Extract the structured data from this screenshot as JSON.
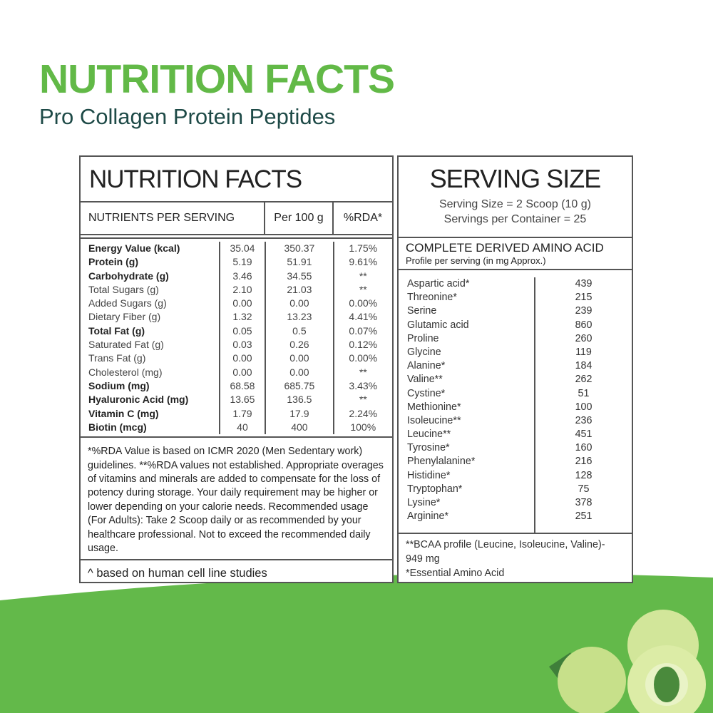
{
  "header": {
    "title": "NUTRITION FACTS",
    "subtitle": "Pro Collagen Protein Peptides"
  },
  "colors": {
    "title_green": "#62b947",
    "subtitle_teal": "#1e4a47",
    "wave_green": "#63b94a"
  },
  "nutrition": {
    "title": "NUTRITION FACTS",
    "columns": [
      "NUTRIENTS PER SERVING",
      "Per 100 g",
      "%RDA*"
    ],
    "rows": [
      {
        "name": "Energy Value (kcal)",
        "serving": "35.04",
        "per100": "350.37",
        "rda": "1.75%",
        "bold": true
      },
      {
        "name": "Protein (g)",
        "serving": "5.19",
        "per100": "51.91",
        "rda": "9.61%",
        "bold": true
      },
      {
        "name": "Carbohydrate (g)",
        "serving": "3.46",
        "per100": "34.55",
        "rda": "**",
        "bold": true
      },
      {
        "name": "Total Sugars (g)",
        "serving": "2.10",
        "per100": "21.03",
        "rda": "**",
        "bold": false
      },
      {
        "name": "Added Sugars (g)",
        "serving": "0.00",
        "per100": "0.00",
        "rda": "0.00%",
        "bold": false
      },
      {
        "name": "Dietary Fiber (g)",
        "serving": "1.32",
        "per100": "13.23",
        "rda": "4.41%",
        "bold": false
      },
      {
        "name": "Total Fat (g)",
        "serving": "0.05",
        "per100": "0.5",
        "rda": "0.07%",
        "bold": true
      },
      {
        "name": "Saturated Fat (g)",
        "serving": "0.03",
        "per100": "0.26",
        "rda": "0.12%",
        "bold": false
      },
      {
        "name": "Trans Fat (g)",
        "serving": "0.00",
        "per100": "0.00",
        "rda": "0.00%",
        "bold": false
      },
      {
        "name": "Cholesterol (mg)",
        "serving": "0.00",
        "per100": "0.00",
        "rda": "**",
        "bold": false
      },
      {
        "name": "Sodium (mg)",
        "serving": "68.58",
        "per100": "685.75",
        "rda": "3.43%",
        "bold": true
      },
      {
        "name": "Hyaluronic Acid (mg)",
        "serving": "13.65",
        "per100": "136.5",
        "rda": "**",
        "bold": true
      },
      {
        "name": "Vitamin C (mg)",
        "serving": "1.79",
        "per100": "17.9",
        "rda": "2.24%",
        "bold": true
      },
      {
        "name": "Biotin (mcg)",
        "serving": "40",
        "per100": "400",
        "rda": "100%",
        "bold": true
      }
    ],
    "footnote": "*%RDA Value is based on ICMR 2020 (Men Sedentary work) guidelines. **%RDA values not established. Appropriate overages of vitamins and minerals are added to compensate for the loss of potency during storage. Your daily requirement may be higher or lower depending on your calorie needs. Recommended usage (For Adults): Take 2 Scoop daily or as recommended by your healthcare professional. Not to exceed the recommended daily usage.",
    "footnote2": "^ based on human cell line studies"
  },
  "serving": {
    "title": "SERVING SIZE",
    "size": "Serving Size = 2 Scoop (10 g)",
    "per_container": "Servings per Container = 25"
  },
  "amino": {
    "title": "COMPLETE DERIVED AMINO ACID",
    "subtitle": "Profile per serving (in mg Approx.)",
    "rows": [
      {
        "name": "Aspartic acid*",
        "value": "439"
      },
      {
        "name": "Threonine*",
        "value": "215"
      },
      {
        "name": "Serine",
        "value": "239"
      },
      {
        "name": "Glutamic acid",
        "value": "860"
      },
      {
        "name": "Proline",
        "value": "260"
      },
      {
        "name": "Glycine",
        "value": "119"
      },
      {
        "name": "Alanine*",
        "value": "184"
      },
      {
        "name": "Valine**",
        "value": "262"
      },
      {
        "name": "Cystine*",
        "value": "51"
      },
      {
        "name": "Methionine*",
        "value": "100"
      },
      {
        "name": "Isoleucine**",
        "value": "236"
      },
      {
        "name": "Leucine**",
        "value": "451"
      },
      {
        "name": "Tyrosine*",
        "value": "160"
      },
      {
        "name": "Phenylalanine*",
        "value": "216"
      },
      {
        "name": "Histidine*",
        "value": "128"
      },
      {
        "name": "Tryptophan*",
        "value": "75"
      },
      {
        "name": "Lysine*",
        "value": "378"
      },
      {
        "name": "Arginine*",
        "value": "251"
      }
    ],
    "footnote1": "**BCAA profile (Leucine, Isoleucine, Valine)- 949 mg",
    "footnote2": "*Essential Amino Acid"
  }
}
